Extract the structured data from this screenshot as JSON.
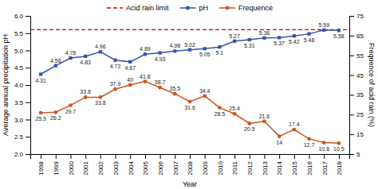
{
  "chart_data": {
    "type": "line",
    "xlabel": "Year",
    "ylabel": "Average annual precipitation pH",
    "y2label": "Frequence of acid rain (%)",
    "x": [
      1998,
      1999,
      2000,
      2001,
      2002,
      2003,
      2004,
      2005,
      2006,
      2007,
      2008,
      2009,
      2010,
      2011,
      2012,
      2013,
      2014,
      2015,
      2016,
      2017,
      2018
    ],
    "xlim": [
      1997.3,
      2018.7
    ],
    "xticks": [
      1998,
      1999,
      2000,
      2001,
      2002,
      2003,
      2004,
      2005,
      2006,
      2007,
      2008,
      2009,
      2010,
      2011,
      2012,
      2013,
      2014,
      2015,
      2016,
      2017,
      2018
    ],
    "ylim": [
      2.0,
      6.0
    ],
    "yticks": [
      {
        "value": 2,
        "label": "2.0"
      },
      2.5,
      {
        "value": 3,
        "label": "3.0"
      },
      3.5,
      {
        "value": 4,
        "label": "4.0"
      },
      4.5,
      {
        "value": 5,
        "label": "5.0"
      },
      5.5,
      {
        "value": 6,
        "label": "6.0"
      }
    ],
    "y2lim": [
      5,
      75
    ],
    "y2ticks": [
      5,
      15,
      25,
      35,
      45,
      55,
      65,
      75
    ],
    "grid": false,
    "legend": "top",
    "data_labels": true,
    "reference_line": {
      "name": "Acid rain limit",
      "value": 5.6,
      "color": "#cc0000",
      "line_style": "dashed"
    },
    "series": [
      {
        "name": "pH",
        "color": "#3355aa",
        "marker": "square",
        "line_style": "solid",
        "values": [
          4.31,
          4.56,
          4.78,
          4.83,
          4.96,
          4.72,
          4.67,
          4.89,
          4.93,
          4.98,
          5.02,
          5.05,
          5.1,
          5.27,
          5.31,
          5.36,
          5.37,
          5.42,
          5.48,
          5.59,
          5.58
        ]
      },
      {
        "name": "Frequence",
        "color": "#cc5522",
        "marker": "circle",
        "line_style": "solid",
        "axis": "y2",
        "values": [
          25.9,
          26.2,
          29.7,
          33.8,
          33.8,
          37.9,
          40,
          41.8,
          38.7,
          35.5,
          31.6,
          34.4,
          28.5,
          25.4,
          20.5,
          21.6,
          14,
          17.4,
          12.7,
          10.8,
          10.5
        ]
      }
    ]
  }
}
